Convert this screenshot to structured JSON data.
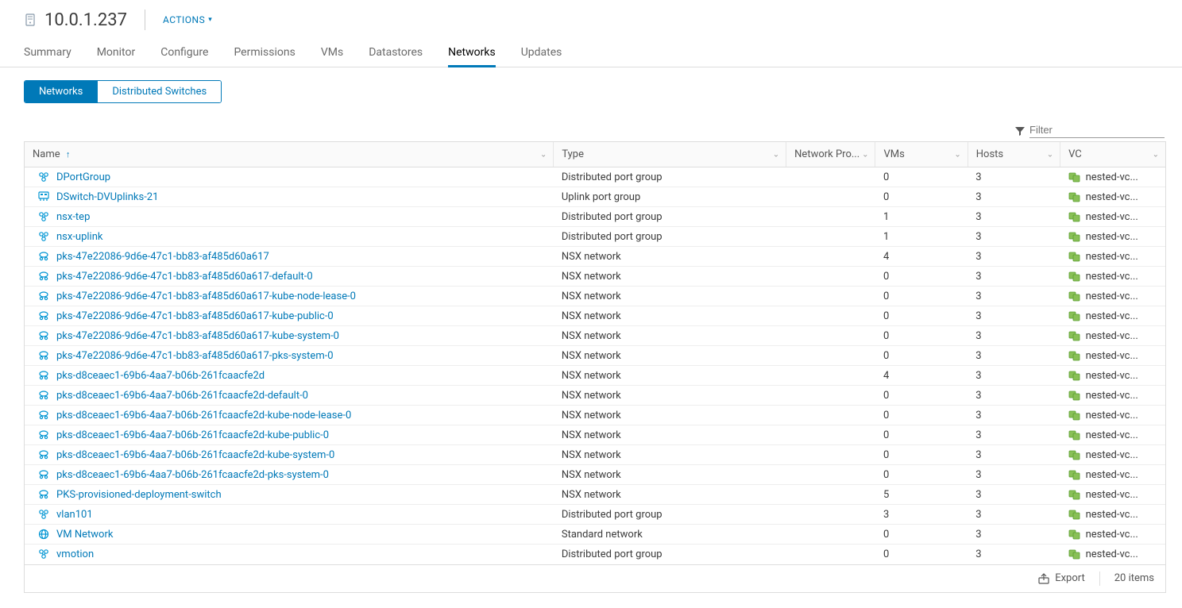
{
  "header": {
    "title": "10.0.1.237",
    "actions_label": "ACTIONS"
  },
  "tabs": [
    {
      "label": "Summary",
      "active": false
    },
    {
      "label": "Monitor",
      "active": false
    },
    {
      "label": "Configure",
      "active": false
    },
    {
      "label": "Permissions",
      "active": false
    },
    {
      "label": "VMs",
      "active": false
    },
    {
      "label": "Datastores",
      "active": false
    },
    {
      "label": "Networks",
      "active": true
    },
    {
      "label": "Updates",
      "active": false
    }
  ],
  "subtabs": [
    {
      "label": "Networks",
      "active": true
    },
    {
      "label": "Distributed Switches",
      "active": false
    }
  ],
  "filter": {
    "placeholder": "Filter"
  },
  "columns": {
    "name": "Name",
    "type": "Type",
    "np": "Network Pro...",
    "vms": "VMs",
    "hosts": "Hosts",
    "vc": "VC"
  },
  "vc_label_trunc": "nested-vc...",
  "rows": [
    {
      "icon": "dpg",
      "name": "DPortGroup",
      "type": "Distributed port group",
      "np": "",
      "vms": "0",
      "hosts": "3"
    },
    {
      "icon": "uplink",
      "name": "DSwitch-DVUplinks-21",
      "type": "Uplink port group",
      "np": "",
      "vms": "0",
      "hosts": "3"
    },
    {
      "icon": "dpg",
      "name": "nsx-tep",
      "type": "Distributed port group",
      "np": "",
      "vms": "1",
      "hosts": "3"
    },
    {
      "icon": "dpg",
      "name": "nsx-uplink",
      "type": "Distributed port group",
      "np": "",
      "vms": "1",
      "hosts": "3"
    },
    {
      "icon": "nsx",
      "name": "pks-47e22086-9d6e-47c1-bb83-af485d60a617",
      "type": "NSX network",
      "np": "",
      "vms": "4",
      "hosts": "3"
    },
    {
      "icon": "nsx",
      "name": "pks-47e22086-9d6e-47c1-bb83-af485d60a617-default-0",
      "type": "NSX network",
      "np": "",
      "vms": "0",
      "hosts": "3"
    },
    {
      "icon": "nsx",
      "name": "pks-47e22086-9d6e-47c1-bb83-af485d60a617-kube-node-lease-0",
      "type": "NSX network",
      "np": "",
      "vms": "0",
      "hosts": "3"
    },
    {
      "icon": "nsx",
      "name": "pks-47e22086-9d6e-47c1-bb83-af485d60a617-kube-public-0",
      "type": "NSX network",
      "np": "",
      "vms": "0",
      "hosts": "3"
    },
    {
      "icon": "nsx",
      "name": "pks-47e22086-9d6e-47c1-bb83-af485d60a617-kube-system-0",
      "type": "NSX network",
      "np": "",
      "vms": "0",
      "hosts": "3"
    },
    {
      "icon": "nsx",
      "name": "pks-47e22086-9d6e-47c1-bb83-af485d60a617-pks-system-0",
      "type": "NSX network",
      "np": "",
      "vms": "0",
      "hosts": "3"
    },
    {
      "icon": "nsx",
      "name": "pks-d8ceaec1-69b6-4aa7-b06b-261fcaacfe2d",
      "type": "NSX network",
      "np": "",
      "vms": "4",
      "hosts": "3"
    },
    {
      "icon": "nsx",
      "name": "pks-d8ceaec1-69b6-4aa7-b06b-261fcaacfe2d-default-0",
      "type": "NSX network",
      "np": "",
      "vms": "0",
      "hosts": "3"
    },
    {
      "icon": "nsx",
      "name": "pks-d8ceaec1-69b6-4aa7-b06b-261fcaacfe2d-kube-node-lease-0",
      "type": "NSX network",
      "np": "",
      "vms": "0",
      "hosts": "3"
    },
    {
      "icon": "nsx",
      "name": "pks-d8ceaec1-69b6-4aa7-b06b-261fcaacfe2d-kube-public-0",
      "type": "NSX network",
      "np": "",
      "vms": "0",
      "hosts": "3"
    },
    {
      "icon": "nsx",
      "name": "pks-d8ceaec1-69b6-4aa7-b06b-261fcaacfe2d-kube-system-0",
      "type": "NSX network",
      "np": "",
      "vms": "0",
      "hosts": "3"
    },
    {
      "icon": "nsx",
      "name": "pks-d8ceaec1-69b6-4aa7-b06b-261fcaacfe2d-pks-system-0",
      "type": "NSX network",
      "np": "",
      "vms": "0",
      "hosts": "3"
    },
    {
      "icon": "nsx",
      "name": "PKS-provisioned-deployment-switch",
      "type": "NSX network",
      "np": "",
      "vms": "5",
      "hosts": "3"
    },
    {
      "icon": "dpg",
      "name": "vlan101",
      "type": "Distributed port group",
      "np": "",
      "vms": "3",
      "hosts": "3"
    },
    {
      "icon": "std",
      "name": "VM Network",
      "type": "Standard network",
      "np": "",
      "vms": "0",
      "hosts": "3"
    },
    {
      "icon": "dpg",
      "name": "vmotion",
      "type": "Distributed port group",
      "np": "",
      "vms": "0",
      "hosts": "3"
    }
  ],
  "footer": {
    "export": "Export",
    "count": "20 items"
  },
  "colors": {
    "link": "#0079b8",
    "icon_blue": "#0095d3",
    "icon_green": "#62a420",
    "border": "#dddddd",
    "text": "#3b3b3b"
  }
}
